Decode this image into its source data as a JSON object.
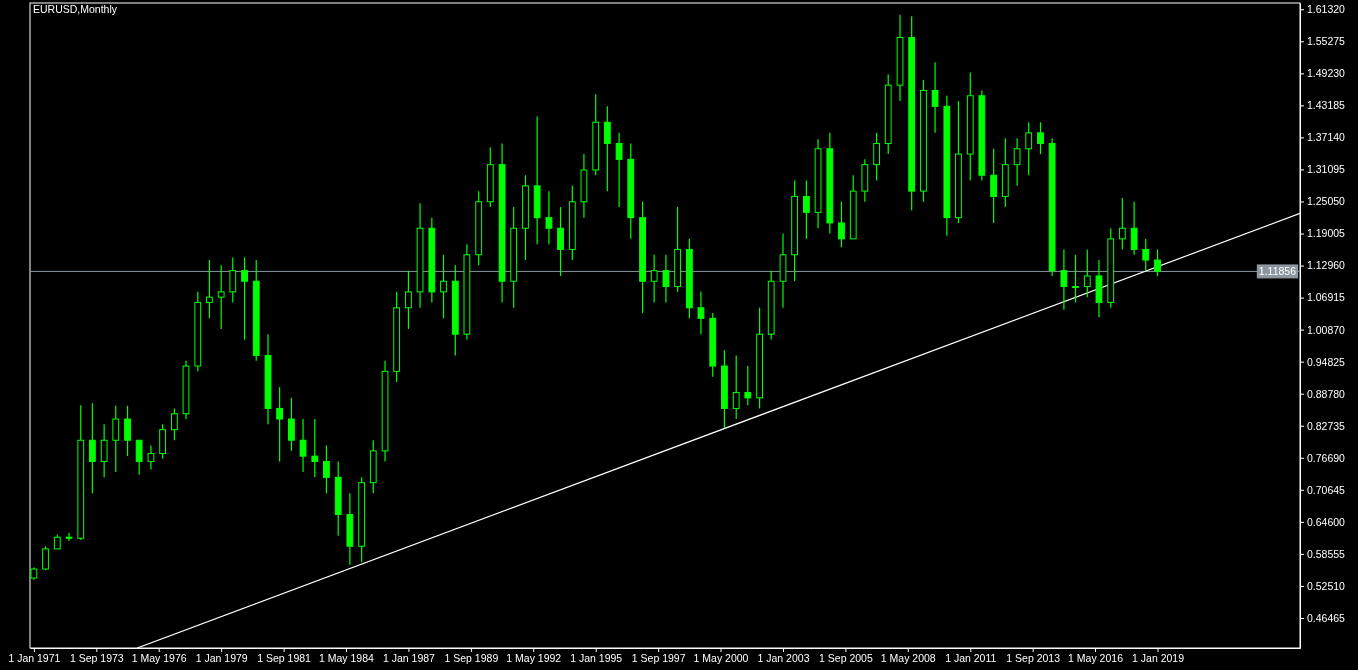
{
  "chart_data": {
    "type": "candlestick",
    "title": "EURUSD,Monthly",
    "x": [
      "1971-01",
      "1971-07",
      "1972-01",
      "1972-07",
      "1973-01",
      "1973-07",
      "1974-01",
      "1974-07",
      "1975-01",
      "1975-07",
      "1976-01",
      "1976-07",
      "1977-01",
      "1977-07",
      "1978-01",
      "1978-07",
      "1979-01",
      "1979-07",
      "1980-01",
      "1980-07",
      "1981-01",
      "1981-07",
      "1982-01",
      "1982-07",
      "1983-01",
      "1983-07",
      "1984-01",
      "1984-07",
      "1985-01",
      "1985-07",
      "1986-01",
      "1986-07",
      "1987-01",
      "1987-07",
      "1988-01",
      "1988-07",
      "1989-01",
      "1989-07",
      "1990-01",
      "1990-07",
      "1991-01",
      "1991-07",
      "1992-01",
      "1992-07",
      "1993-01",
      "1993-07",
      "1994-01",
      "1994-07",
      "1995-01",
      "1995-07",
      "1996-01",
      "1996-07",
      "1997-01",
      "1997-07",
      "1998-01",
      "1998-07",
      "1999-01",
      "1999-07",
      "2000-01",
      "2000-07",
      "2001-01",
      "2001-07",
      "2002-01",
      "2002-07",
      "2003-01",
      "2003-07",
      "2004-01",
      "2004-07",
      "2005-01",
      "2005-07",
      "2006-01",
      "2006-07",
      "2007-01",
      "2007-07",
      "2008-01",
      "2008-07",
      "2009-01",
      "2009-07",
      "2010-01",
      "2010-07",
      "2011-01",
      "2011-07",
      "2012-01",
      "2012-07",
      "2013-01",
      "2013-07",
      "2014-01",
      "2014-07",
      "2015-01",
      "2015-07",
      "2016-01",
      "2016-07",
      "2017-01",
      "2017-07",
      "2018-01",
      "2018-07",
      "2019-01"
    ],
    "ohlc": [
      [
        0.54,
        0.56,
        0.537,
        0.557
      ],
      [
        0.557,
        0.6,
        0.555,
        0.595
      ],
      [
        0.595,
        0.622,
        0.595,
        0.617
      ],
      [
        0.617,
        0.625,
        0.61,
        0.615
      ],
      [
        0.615,
        0.866,
        0.612,
        0.8
      ],
      [
        0.8,
        0.87,
        0.7,
        0.76
      ],
      [
        0.76,
        0.83,
        0.73,
        0.8
      ],
      [
        0.8,
        0.865,
        0.74,
        0.84
      ],
      [
        0.84,
        0.865,
        0.77,
        0.8
      ],
      [
        0.8,
        0.8,
        0.735,
        0.76
      ],
      [
        0.76,
        0.79,
        0.745,
        0.775
      ],
      [
        0.775,
        0.83,
        0.765,
        0.82
      ],
      [
        0.82,
        0.86,
        0.8,
        0.85
      ],
      [
        0.85,
        0.95,
        0.84,
        0.94
      ],
      [
        0.94,
        1.08,
        0.93,
        1.06
      ],
      [
        1.06,
        1.14,
        1.03,
        1.07
      ],
      [
        1.07,
        1.13,
        1.01,
        1.08
      ],
      [
        1.08,
        1.145,
        1.06,
        1.12
      ],
      [
        1.12,
        1.145,
        0.99,
        1.1
      ],
      [
        1.1,
        1.14,
        0.95,
        0.96
      ],
      [
        0.96,
        1.0,
        0.83,
        0.86
      ],
      [
        0.86,
        0.9,
        0.76,
        0.84
      ],
      [
        0.84,
        0.88,
        0.78,
        0.8
      ],
      [
        0.8,
        0.84,
        0.74,
        0.77
      ],
      [
        0.77,
        0.84,
        0.73,
        0.76
      ],
      [
        0.76,
        0.79,
        0.7,
        0.73
      ],
      [
        0.73,
        0.76,
        0.62,
        0.66
      ],
      [
        0.66,
        0.7,
        0.565,
        0.6
      ],
      [
        0.6,
        0.73,
        0.57,
        0.72
      ],
      [
        0.72,
        0.8,
        0.7,
        0.78
      ],
      [
        0.78,
        0.95,
        0.76,
        0.93
      ],
      [
        0.93,
        1.08,
        0.91,
        1.05
      ],
      [
        1.05,
        1.12,
        1.01,
        1.08
      ],
      [
        1.08,
        1.247,
        1.05,
        1.2
      ],
      [
        1.2,
        1.22,
        1.06,
        1.08
      ],
      [
        1.08,
        1.15,
        1.03,
        1.1
      ],
      [
        1.1,
        1.13,
        0.96,
        1.0
      ],
      [
        1.0,
        1.17,
        0.99,
        1.15
      ],
      [
        1.15,
        1.27,
        1.13,
        1.25
      ],
      [
        1.25,
        1.353,
        1.24,
        1.32
      ],
      [
        1.32,
        1.36,
        1.06,
        1.1
      ],
      [
        1.1,
        1.24,
        1.05,
        1.2
      ],
      [
        1.2,
        1.3,
        1.14,
        1.28
      ],
      [
        1.28,
        1.411,
        1.17,
        1.22
      ],
      [
        1.22,
        1.27,
        1.17,
        1.2
      ],
      [
        1.2,
        1.24,
        1.11,
        1.16
      ],
      [
        1.16,
        1.28,
        1.14,
        1.25
      ],
      [
        1.25,
        1.34,
        1.22,
        1.31
      ],
      [
        1.31,
        1.453,
        1.3,
        1.4
      ],
      [
        1.4,
        1.43,
        1.27,
        1.36
      ],
      [
        1.36,
        1.38,
        1.24,
        1.33
      ],
      [
        1.33,
        1.36,
        1.18,
        1.22
      ],
      [
        1.22,
        1.25,
        1.04,
        1.1
      ],
      [
        1.1,
        1.15,
        1.06,
        1.12
      ],
      [
        1.12,
        1.15,
        1.06,
        1.09
      ],
      [
        1.09,
        1.24,
        1.08,
        1.16
      ],
      [
        1.16,
        1.18,
        1.03,
        1.05
      ],
      [
        1.05,
        1.08,
        1.0,
        1.03
      ],
      [
        1.03,
        1.04,
        0.92,
        0.94
      ],
      [
        0.94,
        0.97,
        0.823,
        0.86
      ],
      [
        0.86,
        0.96,
        0.84,
        0.89
      ],
      [
        0.89,
        0.94,
        0.866,
        0.88
      ],
      [
        0.88,
        1.05,
        0.86,
        1.0
      ],
      [
        1.0,
        1.12,
        0.99,
        1.1
      ],
      [
        1.1,
        1.19,
        1.05,
        1.15
      ],
      [
        1.15,
        1.29,
        1.1,
        1.26
      ],
      [
        1.26,
        1.29,
        1.18,
        1.23
      ],
      [
        1.23,
        1.368,
        1.2,
        1.35
      ],
      [
        1.35,
        1.38,
        1.19,
        1.21
      ],
      [
        1.21,
        1.25,
        1.164,
        1.18
      ],
      [
        1.18,
        1.3,
        1.18,
        1.27
      ],
      [
        1.27,
        1.33,
        1.25,
        1.32
      ],
      [
        1.32,
        1.38,
        1.29,
        1.36
      ],
      [
        1.36,
        1.49,
        1.34,
        1.47
      ],
      [
        1.47,
        1.603,
        1.44,
        1.56
      ],
      [
        1.56,
        1.6,
        1.234,
        1.27
      ],
      [
        1.27,
        1.48,
        1.25,
        1.46
      ],
      [
        1.46,
        1.513,
        1.38,
        1.43
      ],
      [
        1.43,
        1.45,
        1.186,
        1.22
      ],
      [
        1.22,
        1.44,
        1.21,
        1.34
      ],
      [
        1.34,
        1.494,
        1.29,
        1.45
      ],
      [
        1.45,
        1.46,
        1.29,
        1.3
      ],
      [
        1.3,
        1.35,
        1.21,
        1.26
      ],
      [
        1.26,
        1.37,
        1.24,
        1.32
      ],
      [
        1.32,
        1.37,
        1.28,
        1.35
      ],
      [
        1.35,
        1.4,
        1.3,
        1.38
      ],
      [
        1.38,
        1.4,
        1.34,
        1.36
      ],
      [
        1.36,
        1.37,
        1.11,
        1.12
      ],
      [
        1.12,
        1.16,
        1.046,
        1.09
      ],
      [
        1.09,
        1.15,
        1.06,
        1.09
      ],
      [
        1.09,
        1.16,
        1.07,
        1.11
      ],
      [
        1.11,
        1.14,
        1.032,
        1.06
      ],
      [
        1.06,
        1.2,
        1.05,
        1.18
      ],
      [
        1.18,
        1.257,
        1.16,
        1.2
      ],
      [
        1.2,
        1.25,
        1.15,
        1.16
      ],
      [
        1.16,
        1.18,
        1.12,
        1.14
      ],
      [
        1.14,
        1.16,
        1.11,
        1.119
      ]
    ],
    "color": "#00ff00",
    "series": [
      {
        "type": "line",
        "color": "#ffffff",
        "x": [
          "1975-06",
          "2025-02"
        ],
        "values": [
          0.408,
          1.228
        ]
      }
    ],
    "xlim": [
      "1970-11",
      "2025-02"
    ],
    "xticks": [
      {
        "value": "1971-01",
        "label": "1 Jan 1971"
      },
      {
        "value": "1973-09",
        "label": "1 Sep 1973"
      },
      {
        "value": "1976-05",
        "label": "1 May 1976"
      },
      {
        "value": "1979-01",
        "label": "1 Jan 1979"
      },
      {
        "value": "1981-09",
        "label": "1 Sep 1981"
      },
      {
        "value": "1984-05",
        "label": "1 May 1984"
      },
      {
        "value": "1987-01",
        "label": "1 Jan 1987"
      },
      {
        "value": "1989-09",
        "label": "1 Sep 1989"
      },
      {
        "value": "1992-05",
        "label": "1 May 1992"
      },
      {
        "value": "1995-01",
        "label": "1 Jan 1995"
      },
      {
        "value": "1997-09",
        "label": "1 Sep 1997"
      },
      {
        "value": "2000-05",
        "label": "1 May 2000"
      },
      {
        "value": "2003-01",
        "label": "1 Jan 2003"
      },
      {
        "value": "2005-09",
        "label": "1 Sep 2005"
      },
      {
        "value": "2008-05",
        "label": "1 May 2008"
      },
      {
        "value": "2011-01",
        "label": "1 Jan 2011"
      },
      {
        "value": "2013-09",
        "label": "1 Sep 2013"
      },
      {
        "value": "2016-05",
        "label": "1 May 2016"
      },
      {
        "value": "2019-01",
        "label": "1 Jan 2019"
      }
    ],
    "ylim": [
      0.408,
      1.625
    ],
    "yticks": [
      {
        "value": 0.46465,
        "label": "0.46465"
      },
      {
        "value": 0.5251,
        "label": "0.52510"
      },
      {
        "value": 0.58555,
        "label": "0.58555"
      },
      {
        "value": 0.646,
        "label": "0.64600"
      },
      {
        "value": 0.70645,
        "label": "0.70645"
      },
      {
        "value": 0.7669,
        "label": "0.76690"
      },
      {
        "value": 0.82735,
        "label": "0.82735"
      },
      {
        "value": 0.8878,
        "label": "0.88780"
      },
      {
        "value": 0.94825,
        "label": "0.94825"
      },
      {
        "value": 1.0087,
        "label": "1.00870"
      },
      {
        "value": 1.06915,
        "label": "1.06915"
      },
      {
        "value": 1.1296,
        "label": "1.12960"
      },
      {
        "value": 1.19005,
        "label": "1.19005"
      },
      {
        "value": 1.2505,
        "label": "1.25050"
      },
      {
        "value": 1.31095,
        "label": "1.31095"
      },
      {
        "value": 1.3714,
        "label": "1.37140"
      },
      {
        "value": 1.43185,
        "label": "1.43185"
      },
      {
        "value": 1.4923,
        "label": "1.49230"
      },
      {
        "value": 1.55275,
        "label": "1.55275"
      },
      {
        "value": 1.6132,
        "label": "1.61320"
      }
    ],
    "ref_lines": [
      {
        "axis": "y",
        "value": 1.11856,
        "label": "1.11856",
        "color": "#8c96a0"
      }
    ],
    "grid": false
  }
}
